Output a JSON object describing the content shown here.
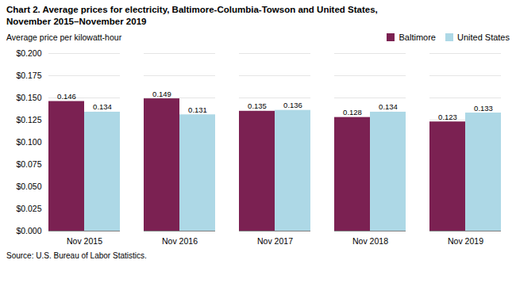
{
  "chart_data": {
    "type": "bar",
    "title": "Chart 2. Average prices for electricity,  Baltimore-Columbia-Towson and United States,",
    "subtitle": "November 2015–November 2019",
    "y_label": "Average  price  per  kilowatt-hour",
    "source": "Source:  U.S. Bureau of Labor Statistics.",
    "categories": [
      "Nov 2015",
      "Nov 2016",
      "Nov 2017",
      "Nov 2018",
      "Nov 2019"
    ],
    "series": [
      {
        "name": "Baltimore",
        "color": "#7B2152",
        "values": [
          0.146,
          0.149,
          0.135,
          0.128,
          0.123
        ]
      },
      {
        "name": "United States",
        "color": "#ADD8E6",
        "values": [
          0.134,
          0.131,
          0.136,
          0.134,
          0.133
        ]
      }
    ],
    "ylim": [
      0,
      0.2
    ],
    "yticks": [
      {
        "value": 0.0,
        "label": "$0.000"
      },
      {
        "value": 0.025,
        "label": "$0.025"
      },
      {
        "value": 0.05,
        "label": "$0.050"
      },
      {
        "value": 0.075,
        "label": "$0.075"
      },
      {
        "value": 0.1,
        "label": "$0.100"
      },
      {
        "value": 0.125,
        "label": "$0.125"
      },
      {
        "value": 0.15,
        "label": "$0.150"
      },
      {
        "value": 0.175,
        "label": "$0.175"
      },
      {
        "value": 0.2,
        "label": "$0.200"
      }
    ],
    "grid": true,
    "legend": "top-right",
    "data_labels": true
  }
}
